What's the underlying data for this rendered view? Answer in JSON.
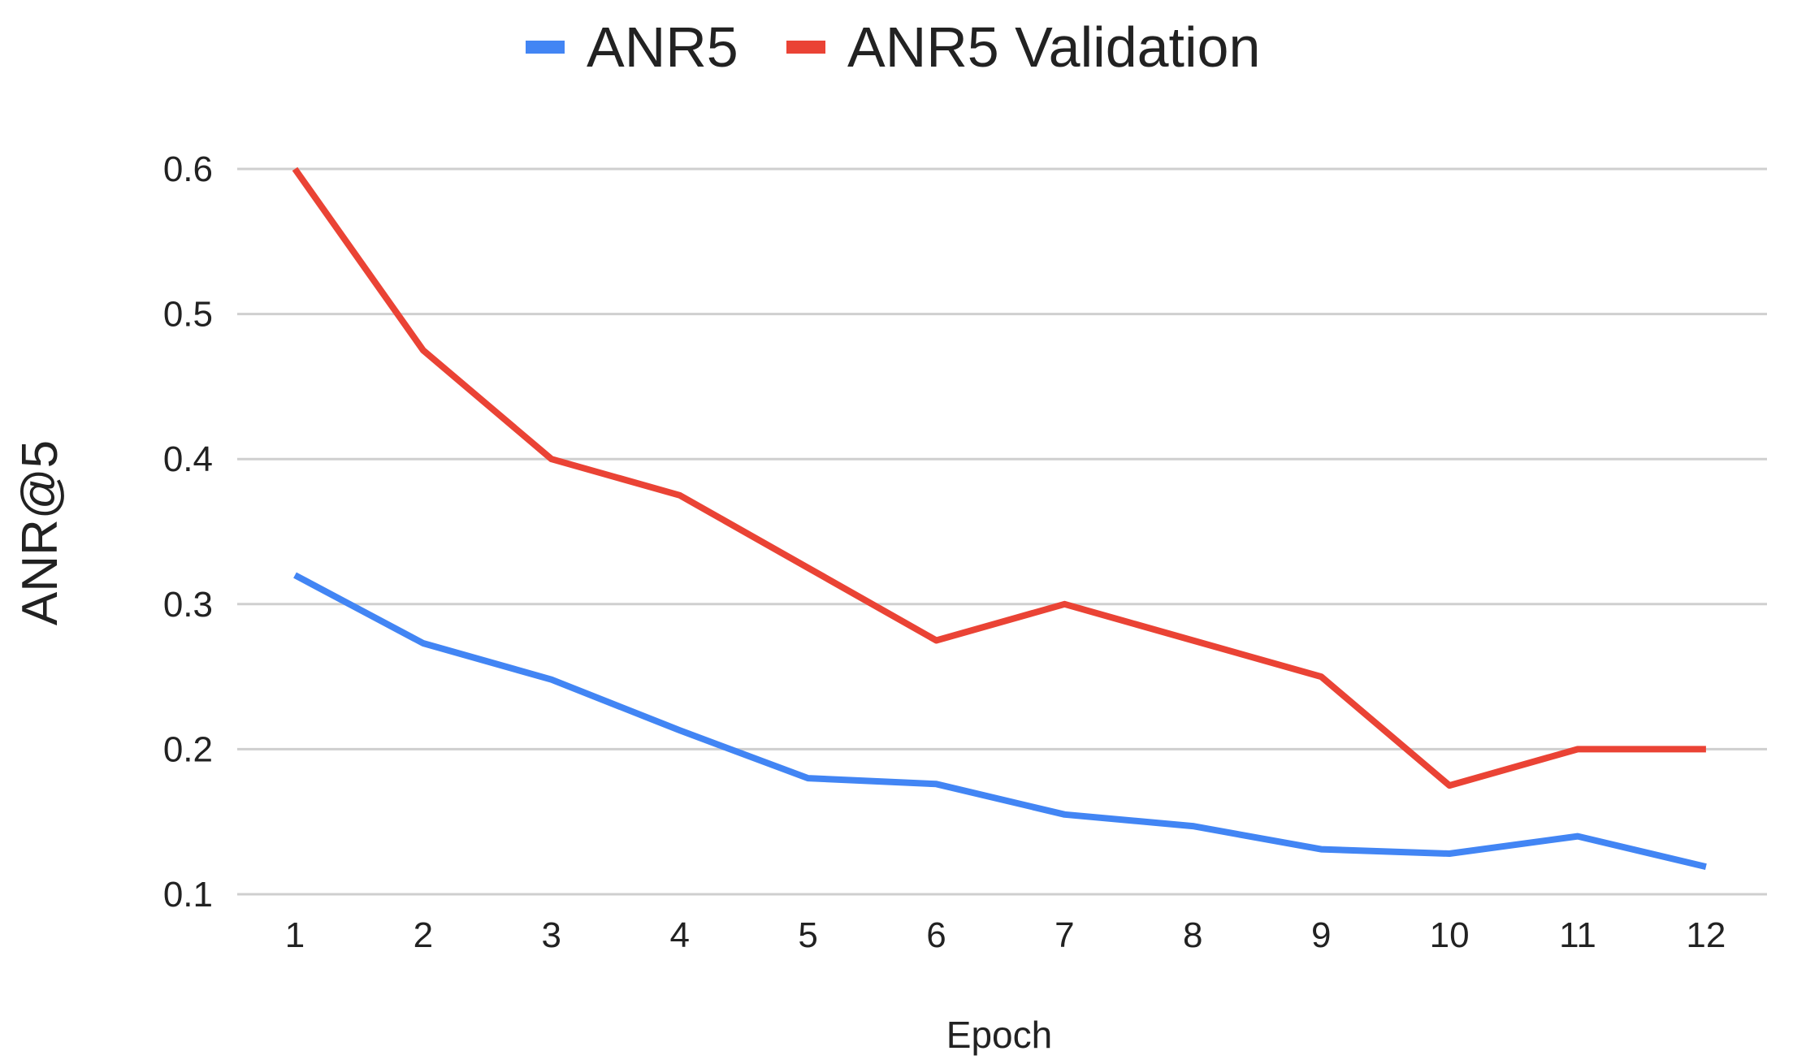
{
  "chart_data": {
    "type": "line",
    "title": "",
    "xlabel": "Epoch",
    "ylabel": "ANR@5",
    "categories": [
      "1",
      "2",
      "3",
      "4",
      "5",
      "6",
      "7",
      "8",
      "9",
      "10",
      "11",
      "12"
    ],
    "yticks": [
      "0.1",
      "0.2",
      "0.3",
      "0.4",
      "0.5",
      "0.6"
    ],
    "ylim": [
      0.1,
      0.6
    ],
    "grid": true,
    "legend_position": "top",
    "series": [
      {
        "name": "ANR5",
        "color": "#4285f4",
        "values": [
          0.32,
          0.273,
          0.248,
          0.213,
          0.18,
          0.176,
          0.155,
          0.147,
          0.131,
          0.128,
          0.14,
          0.119
        ]
      },
      {
        "name": "ANR5 Validation",
        "color": "#ea4335",
        "values": [
          0.6,
          0.475,
          0.4,
          0.375,
          0.325,
          0.275,
          0.3,
          0.275,
          0.25,
          0.175,
          0.2,
          0.2
        ]
      }
    ]
  }
}
